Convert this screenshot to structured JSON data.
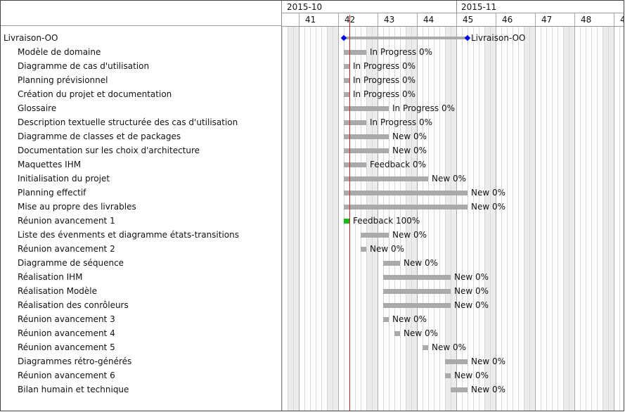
{
  "timeline": {
    "months": [
      {
        "label": "2015-10",
        "week_start": 40
      },
      {
        "label": "2015-11",
        "week_start": 44.5
      }
    ],
    "weeks": [
      "41",
      "42",
      "43",
      "44",
      "45",
      "46",
      "47",
      "48",
      "4"
    ],
    "today": "2015-10-15"
  },
  "tasks": [
    {
      "label": "Livraison-OO",
      "type": "milestone",
      "start": 0,
      "end": 22,
      "status": "Livraison-OO",
      "level": 0
    },
    {
      "label": "Modèle de domaine",
      "start": 0,
      "end": 4,
      "status": "In Progress 0%",
      "level": 1
    },
    {
      "label": "Diagramme de cas d'utilisation",
      "start": 0,
      "end": 1,
      "status": "In Progress 0%",
      "level": 1
    },
    {
      "label": "Planning prévisionnel",
      "start": 0,
      "end": 1,
      "status": "In Progress 0%",
      "level": 1
    },
    {
      "label": "Création du projet et documentation",
      "start": 0,
      "end": 1,
      "status": "In Progress 0%",
      "level": 1
    },
    {
      "label": "Glossaire",
      "start": 0,
      "end": 8,
      "status": "In Progress 0%",
      "level": 1
    },
    {
      "label": "Description textuelle structurée des cas d'utilisation",
      "start": 0,
      "end": 4,
      "status": "In Progress 0%",
      "level": 1
    },
    {
      "label": "Diagramme de classes et de packages",
      "start": 0,
      "end": 8,
      "status": "New 0%",
      "level": 1
    },
    {
      "label": "Documentation sur les choix d'architecture",
      "start": 0,
      "end": 8,
      "status": "New 0%",
      "level": 1
    },
    {
      "label": "Maquettes IHM",
      "start": 0,
      "end": 4,
      "status": "Feedback 0%",
      "level": 1
    },
    {
      "label": "Initialisation du projet",
      "start": 0,
      "end": 15,
      "status": "New 0%",
      "level": 1
    },
    {
      "label": "Planning effectif",
      "start": 0,
      "end": 22,
      "status": "New 0%",
      "level": 1
    },
    {
      "label": "Mise au propre des livrables",
      "start": 0,
      "end": 22,
      "status": "New 0%",
      "level": 1
    },
    {
      "label": "Réunion avancement 1",
      "start": 0,
      "end": 1,
      "status": "Feedback 100%",
      "done": true,
      "level": 1
    },
    {
      "label": "Liste des évenments et diagramme états-transitions",
      "start": 3,
      "end": 8,
      "status": "New 0%",
      "level": 1
    },
    {
      "label": "Réunion avancement 2",
      "start": 3,
      "end": 4,
      "status": "New 0%",
      "level": 1
    },
    {
      "label": "Diagramme de séquence",
      "start": 7,
      "end": 10,
      "status": "New 0%",
      "level": 1
    },
    {
      "label": "Réalisation IHM",
      "start": 7,
      "end": 19,
      "status": "New 0%",
      "level": 1
    },
    {
      "label": "Réalisation Modèle",
      "start": 7,
      "end": 19,
      "status": "New 0%",
      "level": 1
    },
    {
      "label": "Réalisation des conrôleurs",
      "start": 7,
      "end": 19,
      "status": "New 0%",
      "level": 1
    },
    {
      "label": "Réunion avancement 3",
      "start": 7,
      "end": 8,
      "status": "New 0%",
      "level": 1
    },
    {
      "label": "Réunion avancement 4",
      "start": 9,
      "end": 10,
      "status": "New 0%",
      "level": 1
    },
    {
      "label": "Réunion avancement 5",
      "start": 14,
      "end": 15,
      "status": "New 0%",
      "level": 1
    },
    {
      "label": "Diagrammes rétro-générés",
      "start": 18,
      "end": 22,
      "status": "New 0%",
      "level": 1
    },
    {
      "label": "Réunion avancement 6",
      "start": 18,
      "end": 19,
      "status": "New 0%",
      "level": 1
    },
    {
      "label": "Bilan humain et technique",
      "start": 19,
      "end": 22,
      "status": "New 0%",
      "level": 1
    }
  ]
}
